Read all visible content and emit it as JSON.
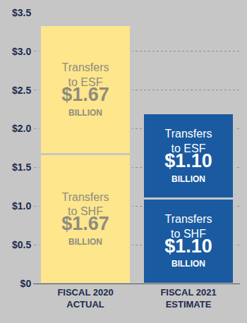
{
  "chart_data": {
    "type": "bar",
    "stacked": true,
    "data_labels": true,
    "grid": true,
    "categories": [
      "FISCAL 2020 ACTUAL",
      "FISCAL 2021 ESTIMATE"
    ],
    "series": [
      {
        "name": "Transfers to SHF",
        "colors": [
          "#fde68c",
          "#1a5aa0"
        ],
        "values": [
          1.67,
          1.1
        ],
        "value_labels": [
          "$1.67 BILLION",
          "$1.10 BILLION"
        ]
      },
      {
        "name": "Transfers to ESF",
        "colors": [
          "#fde68c",
          "#1a5aa0"
        ],
        "values": [
          1.67,
          1.1
        ],
        "value_labels": [
          "$1.67 BILLION",
          "$1.10 BILLION"
        ]
      }
    ],
    "ylim": [
      0,
      3.5
    ],
    "yticks": [
      {
        "value": 0,
        "label": "$0"
      },
      {
        "value": 0.5,
        "label": "$0.5"
      },
      {
        "value": 1.0,
        "label": "$1.0"
      },
      {
        "value": 1.5,
        "label": "$1.5"
      },
      {
        "value": 2.0,
        "label": "$2.0"
      },
      {
        "value": 2.5,
        "label": "$2.5"
      },
      {
        "value": 3.0,
        "label": "$3.0"
      },
      {
        "value": 3.5,
        "label": "$3.5"
      }
    ]
  }
}
